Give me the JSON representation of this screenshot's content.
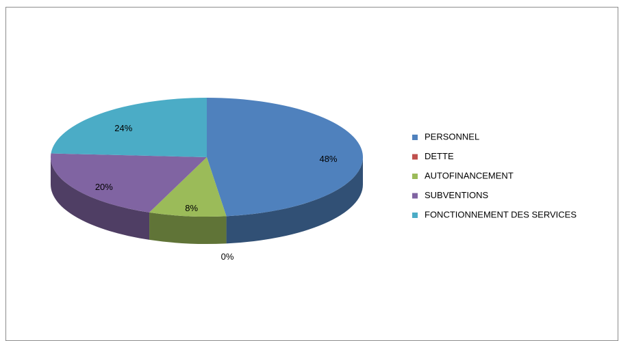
{
  "chart_data": {
    "type": "pie3d",
    "categories": [
      "PERSONNEL",
      "DETTE",
      "AUTOFINANCEMENT",
      "SUBVENTIONS",
      "FONCTIONNEMENT DES SERVICES"
    ],
    "values": [
      48,
      0,
      8,
      20,
      24
    ],
    "value_labels": [
      "48%",
      "0%",
      "8%",
      "20%",
      "24%"
    ],
    "colors": [
      "#4f81bd",
      "#c0504d",
      "#9bbb59",
      "#8064a2",
      "#4bacc6"
    ],
    "legend": "right"
  }
}
